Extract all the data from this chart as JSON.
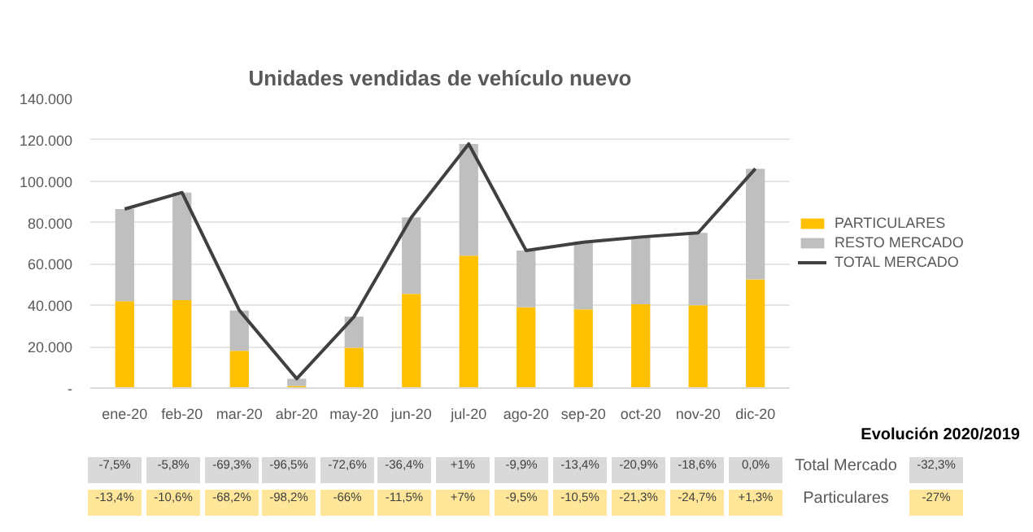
{
  "chart_data": {
    "type": "bar",
    "title": "Unidades vendidas de vehículo nuevo",
    "categories": [
      "ene-20",
      "feb-20",
      "mar-20",
      "abr-20",
      "may-20",
      "jun-20",
      "jul-20",
      "ago-20",
      "sep-20",
      "oct-20",
      "nov-20",
      "dic-20"
    ],
    "stacked": true,
    "series": [
      {
        "name": "PARTICULARES",
        "color": "#ffc000",
        "values": [
          42000,
          42500,
          18000,
          1000,
          19500,
          45500,
          64000,
          39000,
          38000,
          40500,
          40000,
          52500
        ]
      },
      {
        "name": "RESTO MERCADO",
        "color": "#bfbfbf",
        "values": [
          44500,
          52000,
          19500,
          3500,
          15000,
          37000,
          54000,
          27500,
          32500,
          32500,
          35000,
          53500
        ]
      },
      {
        "name": "TOTAL MERCADO",
        "type": "line",
        "color": "#404040",
        "values": [
          86500,
          94500,
          37500,
          4500,
          34500,
          82500,
          118000,
          66500,
          70500,
          73000,
          75000,
          106000
        ]
      }
    ],
    "ylim": [
      0,
      140000
    ],
    "yticks": [
      {
        "value": 0,
        "label": "-"
      },
      {
        "value": 20000,
        "label": "20.000"
      },
      {
        "value": 40000,
        "label": "40.000"
      },
      {
        "value": 60000,
        "label": "60.000"
      },
      {
        "value": 80000,
        "label": "80.000"
      },
      {
        "value": 100000,
        "label": "100.000"
      },
      {
        "value": 120000,
        "label": "120.000"
      },
      {
        "value": 140000,
        "label": "140.000"
      }
    ],
    "grid": "y",
    "legend": "right",
    "line_style": "solid",
    "marker": "none",
    "annotations": [
      "Evolución 2020/2019",
      "-7,5%",
      "-5,8%",
      "-69,3%",
      "-96,5%",
      "-72,6%",
      "-36,4%",
      "+1%",
      "-9,9%",
      "-13,4%",
      "-20,9%",
      "-18,6%",
      "0,0%",
      "Total Mercado",
      "-32,3%",
      "-13,4%",
      "-10,6%",
      "-68,2%",
      "-98,2%",
      "-66%",
      "-11,5%",
      "+7%",
      "-9,5%",
      "-10,5%",
      "-21,3%",
      "-24,7%",
      "+1,3%",
      "Particulares",
      "-27%"
    ]
  }
}
